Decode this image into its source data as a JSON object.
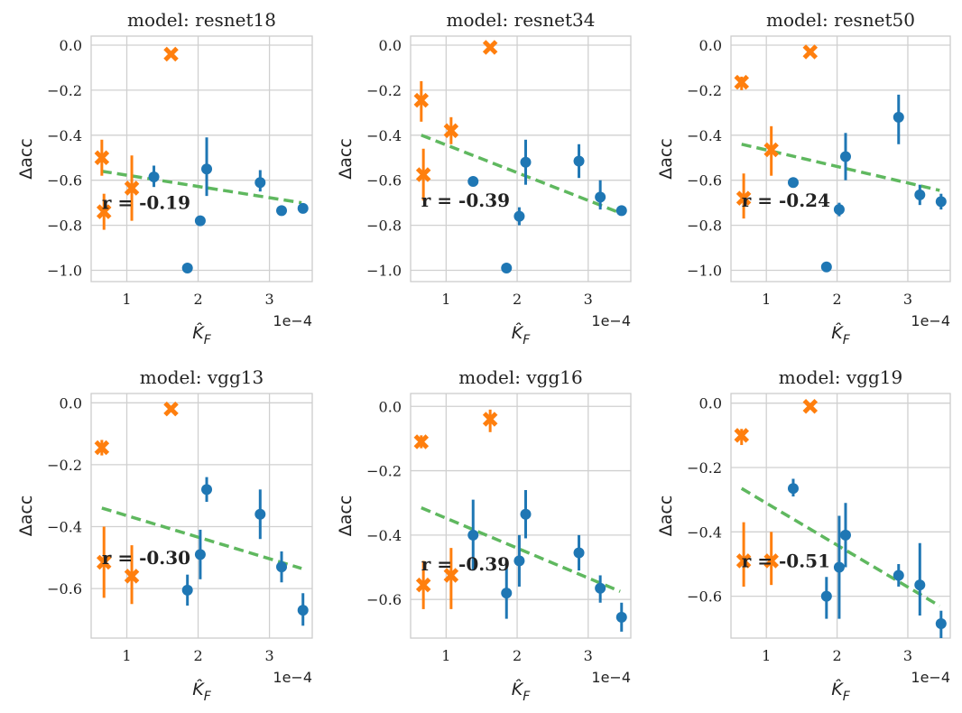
{
  "colors": {
    "blue": "#1f77b4",
    "orange": "#ff7f0e",
    "green": "#5fb85f",
    "grid": "#d0d0d0",
    "frame": "#cccccc",
    "text": "#222222"
  },
  "chart_data": [
    {
      "type": "scatter",
      "title": "model: resnet18",
      "xlabel": "K̂_F",
      "ylabel": "Δacc",
      "x_offset_label": "1e−4",
      "xlim": [
        0.5,
        3.6
      ],
      "ylim": [
        -1.05,
        0.04
      ],
      "xticks": [
        1,
        2,
        3
      ],
      "xtick_labels": [
        "1",
        "2",
        "3"
      ],
      "yticks": [
        0.0,
        -0.2,
        -0.4,
        -0.6,
        -0.8,
        -1.0
      ],
      "ytick_labels": [
        "0.0",
        "−0.2",
        "−0.4",
        "−0.6",
        "−0.8",
        "−1.0"
      ],
      "r_label": "r = -0.19",
      "r_pos": [
        0.65,
        -0.7
      ],
      "fit_line": {
        "x": [
          0.65,
          3.45
        ],
        "y": [
          -0.56,
          -0.7
        ]
      },
      "series": [
        {
          "name": "circle",
          "color": "blue",
          "points": [
            {
              "x": 1.38,
              "y": -0.585,
              "lo": -0.63,
              "hi": -0.535
            },
            {
              "x": 1.85,
              "y": -0.99,
              "lo": -0.99,
              "hi": -0.99
            },
            {
              "x": 2.03,
              "y": -0.78,
              "lo": -0.79,
              "hi": -0.765
            },
            {
              "x": 2.12,
              "y": -0.55,
              "lo": -0.67,
              "hi": -0.41
            },
            {
              "x": 2.87,
              "y": -0.61,
              "lo": -0.65,
              "hi": -0.555
            },
            {
              "x": 3.17,
              "y": -0.735,
              "lo": -0.745,
              "hi": -0.725
            },
            {
              "x": 3.47,
              "y": -0.725,
              "lo": -0.74,
              "hi": -0.71
            }
          ]
        },
        {
          "name": "cross",
          "color": "orange",
          "points": [
            {
              "x": 0.65,
              "y": -0.5,
              "lo": -0.58,
              "hi": -0.42
            },
            {
              "x": 0.68,
              "y": -0.74,
              "lo": -0.82,
              "hi": -0.66
            },
            {
              "x": 1.07,
              "y": -0.635,
              "lo": -0.78,
              "hi": -0.49
            },
            {
              "x": 1.62,
              "y": -0.04,
              "lo": -0.04,
              "hi": -0.04
            }
          ]
        }
      ]
    },
    {
      "type": "scatter",
      "title": "model: resnet34",
      "xlabel": "K̂_F",
      "ylabel": "Δacc",
      "x_offset_label": "1e−4",
      "xlim": [
        0.5,
        3.6
      ],
      "ylim": [
        -1.05,
        0.04
      ],
      "xticks": [
        1,
        2,
        3
      ],
      "xtick_labels": [
        "1",
        "2",
        "3"
      ],
      "yticks": [
        0.0,
        -0.2,
        -0.4,
        -0.6,
        -0.8,
        -1.0
      ],
      "ytick_labels": [
        "0.0",
        "−0.2",
        "−0.4",
        "−0.6",
        "−0.8",
        "−1.0"
      ],
      "r_label": "r = -0.39",
      "r_pos": [
        0.65,
        -0.69
      ],
      "fit_line": {
        "x": [
          0.65,
          3.45
        ],
        "y": [
          -0.4,
          -0.745
        ]
      },
      "series": [
        {
          "name": "circle",
          "color": "blue",
          "points": [
            {
              "x": 1.38,
              "y": -0.605,
              "lo": -0.61,
              "hi": -0.6
            },
            {
              "x": 1.85,
              "y": -0.99,
              "lo": -0.99,
              "hi": -0.99
            },
            {
              "x": 2.03,
              "y": -0.76,
              "lo": -0.8,
              "hi": -0.72
            },
            {
              "x": 2.12,
              "y": -0.52,
              "lo": -0.62,
              "hi": -0.42
            },
            {
              "x": 2.87,
              "y": -0.515,
              "lo": -0.59,
              "hi": -0.44
            },
            {
              "x": 3.17,
              "y": -0.675,
              "lo": -0.73,
              "hi": -0.6
            },
            {
              "x": 3.47,
              "y": -0.735,
              "lo": -0.745,
              "hi": -0.725
            }
          ]
        },
        {
          "name": "cross",
          "color": "orange",
          "points": [
            {
              "x": 0.65,
              "y": -0.245,
              "lo": -0.34,
              "hi": -0.16
            },
            {
              "x": 0.68,
              "y": -0.575,
              "lo": -0.69,
              "hi": -0.46
            },
            {
              "x": 1.07,
              "y": -0.38,
              "lo": -0.44,
              "hi": -0.32
            },
            {
              "x": 1.62,
              "y": -0.01,
              "lo": -0.01,
              "hi": -0.01
            }
          ]
        }
      ]
    },
    {
      "type": "scatter",
      "title": "model: resnet50",
      "xlabel": "K̂_F",
      "ylabel": "Δacc",
      "x_offset_label": "1e−4",
      "xlim": [
        0.5,
        3.6
      ],
      "ylim": [
        -1.05,
        0.04
      ],
      "xticks": [
        1,
        2,
        3
      ],
      "xtick_labels": [
        "1",
        "2",
        "3"
      ],
      "yticks": [
        0.0,
        -0.2,
        -0.4,
        -0.6,
        -0.8,
        -1.0
      ],
      "ytick_labels": [
        "0.0",
        "−0.2",
        "−0.4",
        "−0.6",
        "−0.8",
        "−1.0"
      ],
      "r_label": "r = -0.24",
      "r_pos": [
        0.65,
        -0.69
      ],
      "fit_line": {
        "x": [
          0.65,
          3.45
        ],
        "y": [
          -0.44,
          -0.645
        ]
      },
      "series": [
        {
          "name": "circle",
          "color": "blue",
          "points": [
            {
              "x": 1.38,
              "y": -0.61,
              "lo": -0.615,
              "hi": -0.605
            },
            {
              "x": 1.85,
              "y": -0.985,
              "lo": -0.99,
              "hi": -0.98
            },
            {
              "x": 2.03,
              "y": -0.73,
              "lo": -0.76,
              "hi": -0.7
            },
            {
              "x": 2.12,
              "y": -0.495,
              "lo": -0.6,
              "hi": -0.39
            },
            {
              "x": 2.87,
              "y": -0.32,
              "lo": -0.44,
              "hi": -0.22
            },
            {
              "x": 3.17,
              "y": -0.665,
              "lo": -0.71,
              "hi": -0.62
            },
            {
              "x": 3.47,
              "y": -0.695,
              "lo": -0.73,
              "hi": -0.66
            }
          ]
        },
        {
          "name": "cross",
          "color": "orange",
          "points": [
            {
              "x": 0.65,
              "y": -0.165,
              "lo": -0.2,
              "hi": -0.14
            },
            {
              "x": 0.68,
              "y": -0.68,
              "lo": -0.77,
              "hi": -0.57
            },
            {
              "x": 1.07,
              "y": -0.465,
              "lo": -0.58,
              "hi": -0.36
            },
            {
              "x": 1.62,
              "y": -0.03,
              "lo": -0.03,
              "hi": -0.03
            }
          ]
        }
      ]
    },
    {
      "type": "scatter",
      "title": "model: vgg13",
      "xlabel": "K̂_F",
      "ylabel": "Δacc",
      "x_offset_label": "1e−4",
      "xlim": [
        0.5,
        3.6
      ],
      "ylim": [
        -0.76,
        0.03
      ],
      "xticks": [
        1,
        2,
        3
      ],
      "xtick_labels": [
        "1",
        "2",
        "3"
      ],
      "yticks": [
        0.0,
        -0.2,
        -0.4,
        -0.6
      ],
      "ytick_labels": [
        "0.0",
        "−0.2",
        "−0.4",
        "−0.6"
      ],
      "r_label": "r = -0.30",
      "r_pos": [
        0.65,
        -0.5
      ],
      "fit_line": {
        "x": [
          0.65,
          3.45
        ],
        "y": [
          -0.34,
          -0.535
        ]
      },
      "series": [
        {
          "name": "circle",
          "color": "blue",
          "points": [
            {
              "x": 1.85,
              "y": -0.605,
              "lo": -0.655,
              "hi": -0.555
            },
            {
              "x": 2.03,
              "y": -0.49,
              "lo": -0.57,
              "hi": -0.41
            },
            {
              "x": 2.12,
              "y": -0.28,
              "lo": -0.32,
              "hi": -0.24
            },
            {
              "x": 2.87,
              "y": -0.36,
              "lo": -0.44,
              "hi": -0.28
            },
            {
              "x": 3.17,
              "y": -0.53,
              "lo": -0.58,
              "hi": -0.48
            },
            {
              "x": 3.47,
              "y": -0.67,
              "lo": -0.72,
              "hi": -0.615
            }
          ]
        },
        {
          "name": "cross",
          "color": "orange",
          "points": [
            {
              "x": 0.65,
              "y": -0.145,
              "lo": -0.17,
              "hi": -0.12
            },
            {
              "x": 0.68,
              "y": -0.515,
              "lo": -0.63,
              "hi": -0.4
            },
            {
              "x": 1.07,
              "y": -0.56,
              "lo": -0.65,
              "hi": -0.46
            },
            {
              "x": 1.62,
              "y": -0.02,
              "lo": -0.02,
              "hi": -0.02
            }
          ]
        }
      ]
    },
    {
      "type": "scatter",
      "title": "model: vgg16",
      "xlabel": "K̂_F",
      "ylabel": "Δacc",
      "x_offset_label": "1e−4",
      "xlim": [
        0.5,
        3.6
      ],
      "ylim": [
        -0.72,
        0.04
      ],
      "xticks": [
        1,
        2,
        3
      ],
      "xtick_labels": [
        "1",
        "2",
        "3"
      ],
      "yticks": [
        0.0,
        -0.2,
        -0.4,
        -0.6
      ],
      "ytick_labels": [
        "0.0",
        "−0.2",
        "−0.4",
        "−0.6"
      ],
      "r_label": "r = -0.39",
      "r_pos": [
        0.65,
        -0.49
      ],
      "fit_line": {
        "x": [
          0.65,
          3.45
        ],
        "y": [
          -0.315,
          -0.575
        ]
      },
      "series": [
        {
          "name": "circle",
          "color": "blue",
          "points": [
            {
              "x": 1.38,
              "y": -0.4,
              "lo": -0.51,
              "hi": -0.29
            },
            {
              "x": 1.85,
              "y": -0.58,
              "lo": -0.66,
              "hi": -0.49
            },
            {
              "x": 2.03,
              "y": -0.48,
              "lo": -0.56,
              "hi": -0.4
            },
            {
              "x": 2.12,
              "y": -0.335,
              "lo": -0.41,
              "hi": -0.26
            },
            {
              "x": 2.87,
              "y": -0.455,
              "lo": -0.51,
              "hi": -0.4
            },
            {
              "x": 3.17,
              "y": -0.565,
              "lo": -0.61,
              "hi": -0.525
            },
            {
              "x": 3.47,
              "y": -0.655,
              "lo": -0.7,
              "hi": -0.61
            }
          ]
        },
        {
          "name": "cross",
          "color": "orange",
          "points": [
            {
              "x": 0.65,
              "y": -0.11,
              "lo": -0.13,
              "hi": -0.09
            },
            {
              "x": 0.68,
              "y": -0.555,
              "lo": -0.63,
              "hi": -0.48
            },
            {
              "x": 1.07,
              "y": -0.525,
              "lo": -0.63,
              "hi": -0.44
            },
            {
              "x": 1.62,
              "y": -0.04,
              "lo": -0.08,
              "hi": -0.01
            }
          ]
        }
      ]
    },
    {
      "type": "scatter",
      "title": "model: vgg19",
      "xlabel": "K̂_F",
      "ylabel": "Δacc",
      "x_offset_label": "1e−4",
      "xlim": [
        0.5,
        3.6
      ],
      "ylim": [
        -0.73,
        0.03
      ],
      "xticks": [
        1,
        2,
        3
      ],
      "xtick_labels": [
        "1",
        "2",
        "3"
      ],
      "yticks": [
        0.0,
        -0.2,
        -0.4,
        -0.6
      ],
      "ytick_labels": [
        "0.0",
        "−0.2",
        "−0.4",
        "−0.6"
      ],
      "r_label": "r = -0.51",
      "r_pos": [
        0.65,
        -0.49
      ],
      "fit_line": {
        "x": [
          0.65,
          3.45
        ],
        "y": [
          -0.265,
          -0.63
        ]
      },
      "series": [
        {
          "name": "circle",
          "color": "blue",
          "points": [
            {
              "x": 1.38,
              "y": -0.265,
              "lo": -0.29,
              "hi": -0.235
            },
            {
              "x": 1.85,
              "y": -0.6,
              "lo": -0.67,
              "hi": -0.54
            },
            {
              "x": 2.03,
              "y": -0.51,
              "lo": -0.67,
              "hi": -0.35
            },
            {
              "x": 2.12,
              "y": -0.41,
              "lo": -0.51,
              "hi": -0.31
            },
            {
              "x": 2.87,
              "y": -0.535,
              "lo": -0.57,
              "hi": -0.5
            },
            {
              "x": 3.17,
              "y": -0.565,
              "lo": -0.66,
              "hi": -0.435
            },
            {
              "x": 3.47,
              "y": -0.685,
              "lo": -0.73,
              "hi": -0.645
            }
          ]
        },
        {
          "name": "cross",
          "color": "orange",
          "points": [
            {
              "x": 0.65,
              "y": -0.1,
              "lo": -0.13,
              "hi": -0.08
            },
            {
              "x": 0.68,
              "y": -0.49,
              "lo": -0.57,
              "hi": -0.37
            },
            {
              "x": 1.07,
              "y": -0.49,
              "lo": -0.565,
              "hi": -0.4
            },
            {
              "x": 1.62,
              "y": -0.01,
              "lo": -0.01,
              "hi": -0.01
            }
          ]
        }
      ]
    }
  ]
}
